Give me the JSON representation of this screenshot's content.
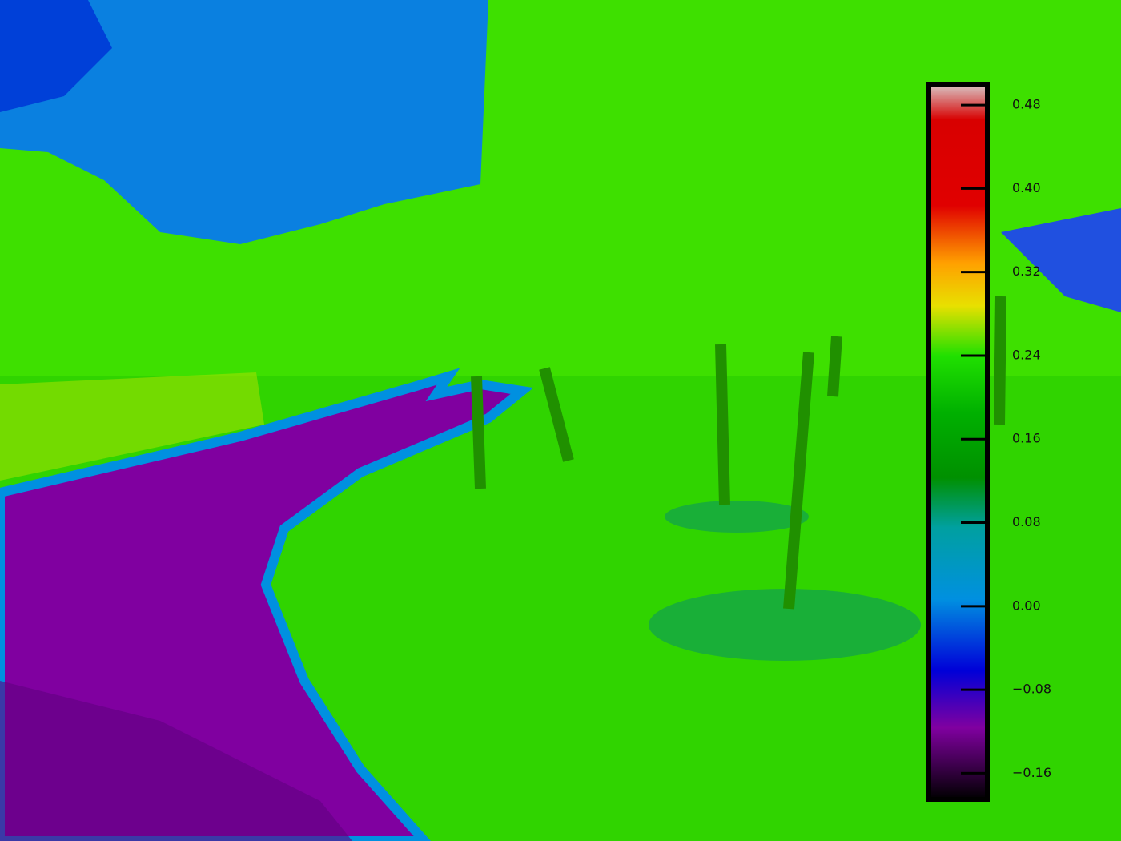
{
  "colorbar": {
    "clim": [
      -0.185,
      0.5
    ],
    "ticks": [
      {
        "value": -0.16,
        "label": "−0.16"
      },
      {
        "value": -0.08,
        "label": "−0.08"
      },
      {
        "value": 0.0,
        "label": "0.00"
      },
      {
        "value": 0.08,
        "label": "0.08"
      },
      {
        "value": 0.16,
        "label": "0.16"
      },
      {
        "value": 0.24,
        "label": "0.24"
      },
      {
        "value": 0.32,
        "label": "0.32"
      },
      {
        "value": 0.4,
        "label": "0.40"
      },
      {
        "value": 0.48,
        "label": "0.48"
      }
    ]
  }
}
